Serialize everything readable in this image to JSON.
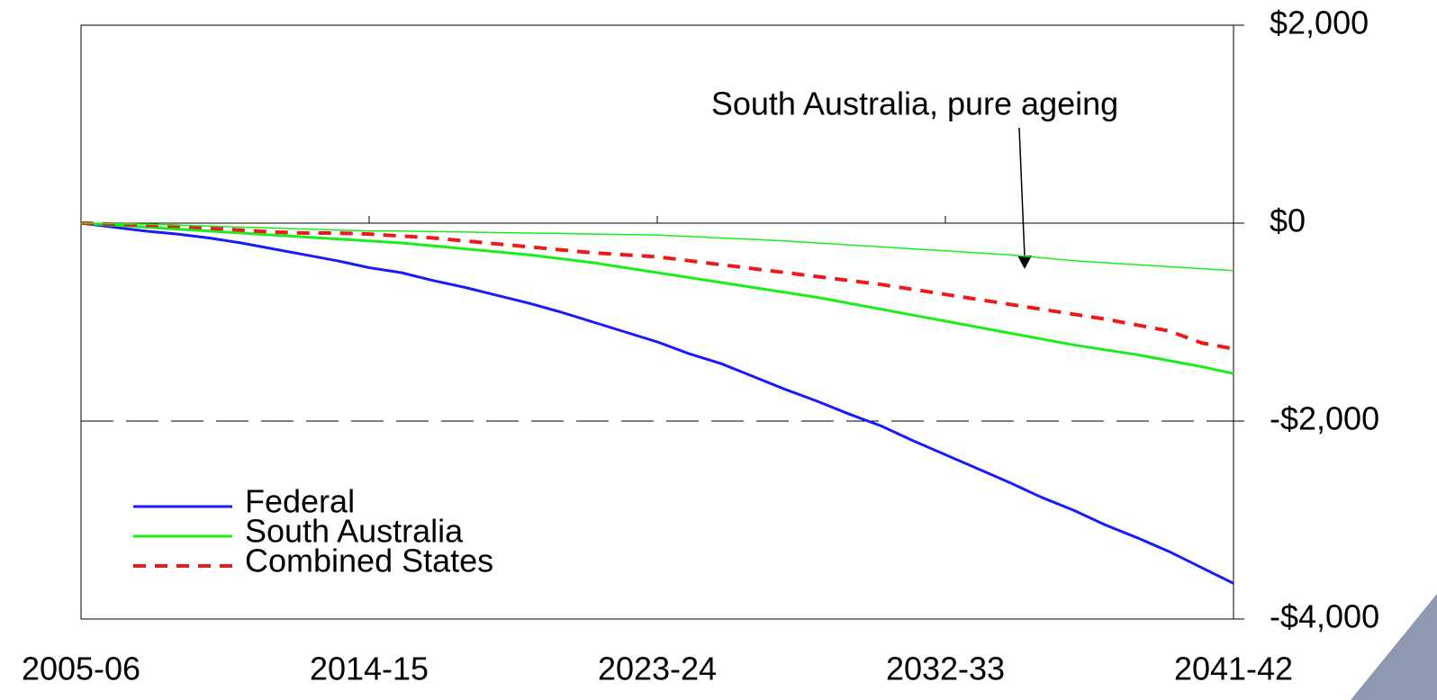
{
  "chart_data": {
    "type": "line",
    "annotation": "South Australia, pure ageing",
    "categories": [
      "2005-06",
      null,
      null,
      null,
      null,
      null,
      null,
      null,
      null,
      "2014-15",
      null,
      null,
      null,
      null,
      null,
      null,
      null,
      null,
      "2023-24",
      null,
      null,
      null,
      null,
      null,
      null,
      null,
      null,
      "2032-33",
      null,
      null,
      null,
      null,
      null,
      null,
      null,
      null,
      "2041-42"
    ],
    "series": [
      {
        "name": "Federal",
        "color": "#1a1aff",
        "width": 3,
        "dashed": false,
        "values": [
          0,
          -40,
          -80,
          -110,
          -150,
          -200,
          -260,
          -320,
          -380,
          -450,
          -500,
          -580,
          -650,
          -730,
          -810,
          -900,
          -1000,
          -1100,
          -1200,
          -1320,
          -1420,
          -1550,
          -1680,
          -1800,
          -1930,
          -2050,
          -2200,
          -2340,
          -2480,
          -2620,
          -2770,
          -2900,
          -3050,
          -3180,
          -3320,
          -3480,
          -3640
        ]
      },
      {
        "name": "South Australia",
        "color": "#1aee1a",
        "width": 3,
        "dashed": false,
        "values": [
          0,
          -20,
          -40,
          -60,
          -80,
          -100,
          -120,
          -140,
          -160,
          -180,
          -200,
          -230,
          -260,
          -290,
          -320,
          -360,
          -400,
          -450,
          -500,
          -550,
          -600,
          -650,
          -700,
          -750,
          -810,
          -870,
          -930,
          -990,
          -1050,
          -1110,
          -1170,
          -1230,
          -1280,
          -1330,
          -1390,
          -1450,
          -1520
        ]
      },
      {
        "name": "Combined States",
        "color": "#ee1a1a",
        "width": 4,
        "dashed": true,
        "values": [
          0,
          -10,
          -20,
          -30,
          -50,
          -70,
          -90,
          -100,
          -100,
          -110,
          -130,
          -150,
          -180,
          -210,
          -240,
          -270,
          -300,
          -320,
          -340,
          -380,
          -420,
          -460,
          -500,
          -540,
          -580,
          -620,
          -670,
          -720,
          -770,
          -820,
          -870,
          -920,
          -970,
          -1030,
          -1090,
          -1210,
          -1270
        ]
      },
      {
        "color": "#1aee1a",
        "width": 1.5,
        "dashed": false,
        "values": [
          0,
          -5,
          -10,
          -20,
          -30,
          -40,
          -50,
          -60,
          -70,
          -80,
          -80,
          -85,
          -90,
          -95,
          -100,
          -105,
          -110,
          -115,
          -120,
          -135,
          -150,
          -165,
          -180,
          -200,
          -220,
          -240,
          -260,
          -280,
          -300,
          -320,
          -350,
          -380,
          -400,
          -420,
          -440,
          -460,
          -480
        ]
      }
    ],
    "ylim": [
      -4000,
      2000
    ],
    "yticks": [
      {
        "value": -4000,
        "label": "-$4,000"
      },
      {
        "value": -2000,
        "label": "-$2,000"
      },
      {
        "value": 0,
        "label": "$0"
      },
      {
        "value": 2000,
        "label": "$2,000"
      }
    ],
    "grid": true,
    "legend": "lower left"
  }
}
